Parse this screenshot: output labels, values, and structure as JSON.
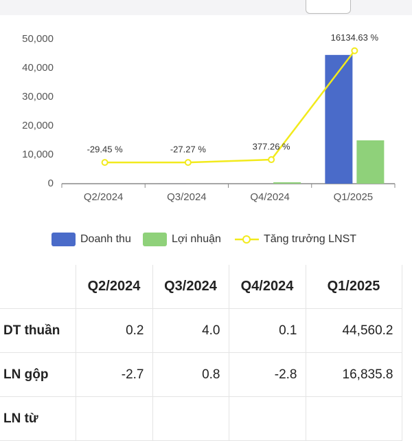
{
  "chart_data": {
    "type": "bar",
    "categories": [
      "Q2/2024",
      "Q3/2024",
      "Q4/2024",
      "Q1/2025"
    ],
    "series": [
      {
        "name": "Doanh thu",
        "color": "#4a6bc9",
        "values": [
          0.2,
          4.0,
          0.1,
          44560.2
        ]
      },
      {
        "name": "Lợi nhuận",
        "color": "#8fd17a",
        "values": [
          0,
          0,
          500,
          15000
        ]
      },
      {
        "name": "Tăng trưởng LNST",
        "type": "line",
        "axis": "y2",
        "color": "#f2ea1c",
        "values": [
          -29.45,
          -27.27,
          377.26,
          16134.63
        ],
        "value_labels": [
          "-29.45 %",
          "-27.27 %",
          "377.26 %",
          "16134.63 %"
        ]
      }
    ],
    "ylim": [
      0,
      50000
    ],
    "yticks": [
      {
        "value": 0,
        "label": "0"
      },
      {
        "value": 10000,
        "label": "10,000"
      },
      {
        "value": 20000,
        "label": "20,000"
      },
      {
        "value": 30000,
        "label": "30,000"
      },
      {
        "value": 40000,
        "label": "40,000"
      },
      {
        "value": 50000,
        "label": "50,000"
      }
    ],
    "y2lim": [
      -3100,
      17800
    ],
    "legend": "bottom"
  },
  "table": {
    "header": [
      "Q2/2024",
      "Q3/2024",
      "Q4/2024",
      "Q1/2025"
    ],
    "rows": [
      [
        "DT thuần",
        "0.2",
        "4.0",
        "0.1",
        "44,560.2"
      ],
      [
        "LN gộp",
        "-2.7",
        "0.8",
        "-2.8",
        "16,835.8"
      ],
      [
        "LN từ"
      ]
    ]
  }
}
